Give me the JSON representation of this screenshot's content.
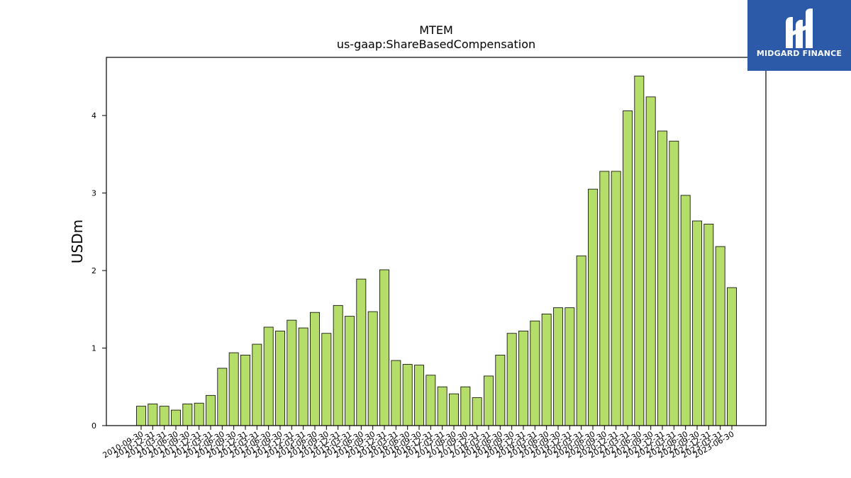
{
  "brand": {
    "name": "MIDGARD FINANCE",
    "background": "#2c5aa8",
    "icon": "midgard-logo-icon"
  },
  "chart_data": {
    "type": "bar",
    "title": "MTEM",
    "subtitle": "us-gaap:ShareBasedCompensation",
    "xlabel": "",
    "ylabel": "USDm",
    "ylim": [
      0,
      4.75
    ],
    "yticks": [
      0,
      1,
      2,
      3,
      4
    ],
    "grid": false,
    "bar_color": "#b5dd6a",
    "bar_edge_color": "#000000",
    "categories": [
      "2010-09-30",
      "2010-12-31",
      "2011-03-31",
      "2011-06-30",
      "2011-09-30",
      "2011-12-31",
      "2012-03-31",
      "2012-06-30",
      "2012-09-30",
      "2012-12-31",
      "2013-03-31",
      "2013-06-30",
      "2013-09-30",
      "2013-12-31",
      "2014-03-31",
      "2014-06-30",
      "2014-09-30",
      "2014-12-31",
      "2015-03-31",
      "2015-06-30",
      "2015-09-30",
      "2015-12-31",
      "2016-03-31",
      "2016-06-30",
      "2016-09-30",
      "2016-12-31",
      "2017-03-31",
      "2017-06-30",
      "2017-09-30",
      "2017-12-31",
      "2018-03-31",
      "2018-06-30",
      "2018-09-30",
      "2018-12-31",
      "2019-03-31",
      "2019-06-30",
      "2019-09-30",
      "2019-12-31",
      "2020-03-31",
      "2020-06-30",
      "2020-09-30",
      "2020-12-31",
      "2021-03-31",
      "2021-06-30",
      "2021-09-30",
      "2021-12-31",
      "2022-03-31",
      "2022-06-30",
      "2022-09-30",
      "2022-12-31",
      "2023-03-31",
      "2023-06-30"
    ],
    "values": [
      0.25,
      0.28,
      0.25,
      0.2,
      0.28,
      0.29,
      0.39,
      0.74,
      0.94,
      0.91,
      1.05,
      1.27,
      1.22,
      1.36,
      1.26,
      1.46,
      1.19,
      1.55,
      1.41,
      1.89,
      1.47,
      2.01,
      0.84,
      0.79,
      0.78,
      0.65,
      0.5,
      0.41,
      0.5,
      0.36,
      0.64,
      0.91,
      1.19,
      1.22,
      1.35,
      1.44,
      1.52,
      1.52,
      2.19,
      3.05,
      3.28,
      3.28,
      4.06,
      4.51,
      4.24,
      3.8,
      3.67,
      2.97,
      2.64,
      2.6,
      2.31,
      1.78
    ]
  }
}
